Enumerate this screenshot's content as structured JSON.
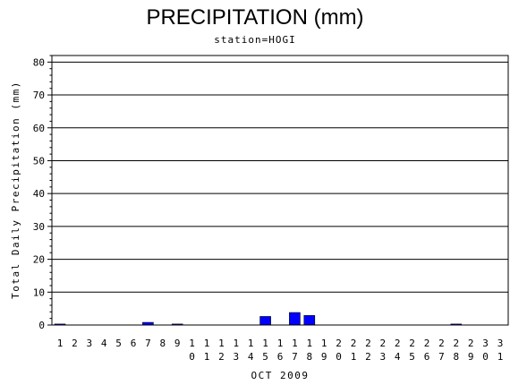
{
  "chart_data": {
    "type": "bar",
    "title": "PRECIPITATION (mm)",
    "subtitle": "station=HOGI",
    "ylabel": "Total Daily Precipitation (mm)",
    "xlabel": "OCT 2009",
    "ylim": [
      0,
      82
    ],
    "yticks": [
      0,
      10,
      20,
      30,
      40,
      50,
      60,
      70,
      80
    ],
    "grid": true,
    "bar_color": "#0000ff",
    "categories": [
      "1",
      "2",
      "3",
      "4",
      "5",
      "6",
      "7",
      "8",
      "9",
      "10",
      "11",
      "12",
      "13",
      "14",
      "15",
      "16",
      "17",
      "18",
      "19",
      "20",
      "21",
      "22",
      "23",
      "24",
      "25",
      "26",
      "27",
      "28",
      "29",
      "30",
      "31"
    ],
    "values": [
      0.3,
      0,
      0,
      0,
      0,
      0,
      0.8,
      0,
      0.3,
      0,
      0,
      0,
      0,
      0,
      2.6,
      0,
      3.8,
      2.9,
      0,
      0,
      0,
      0,
      0,
      0,
      0,
      0,
      0,
      0.3,
      0,
      0,
      0
    ]
  }
}
